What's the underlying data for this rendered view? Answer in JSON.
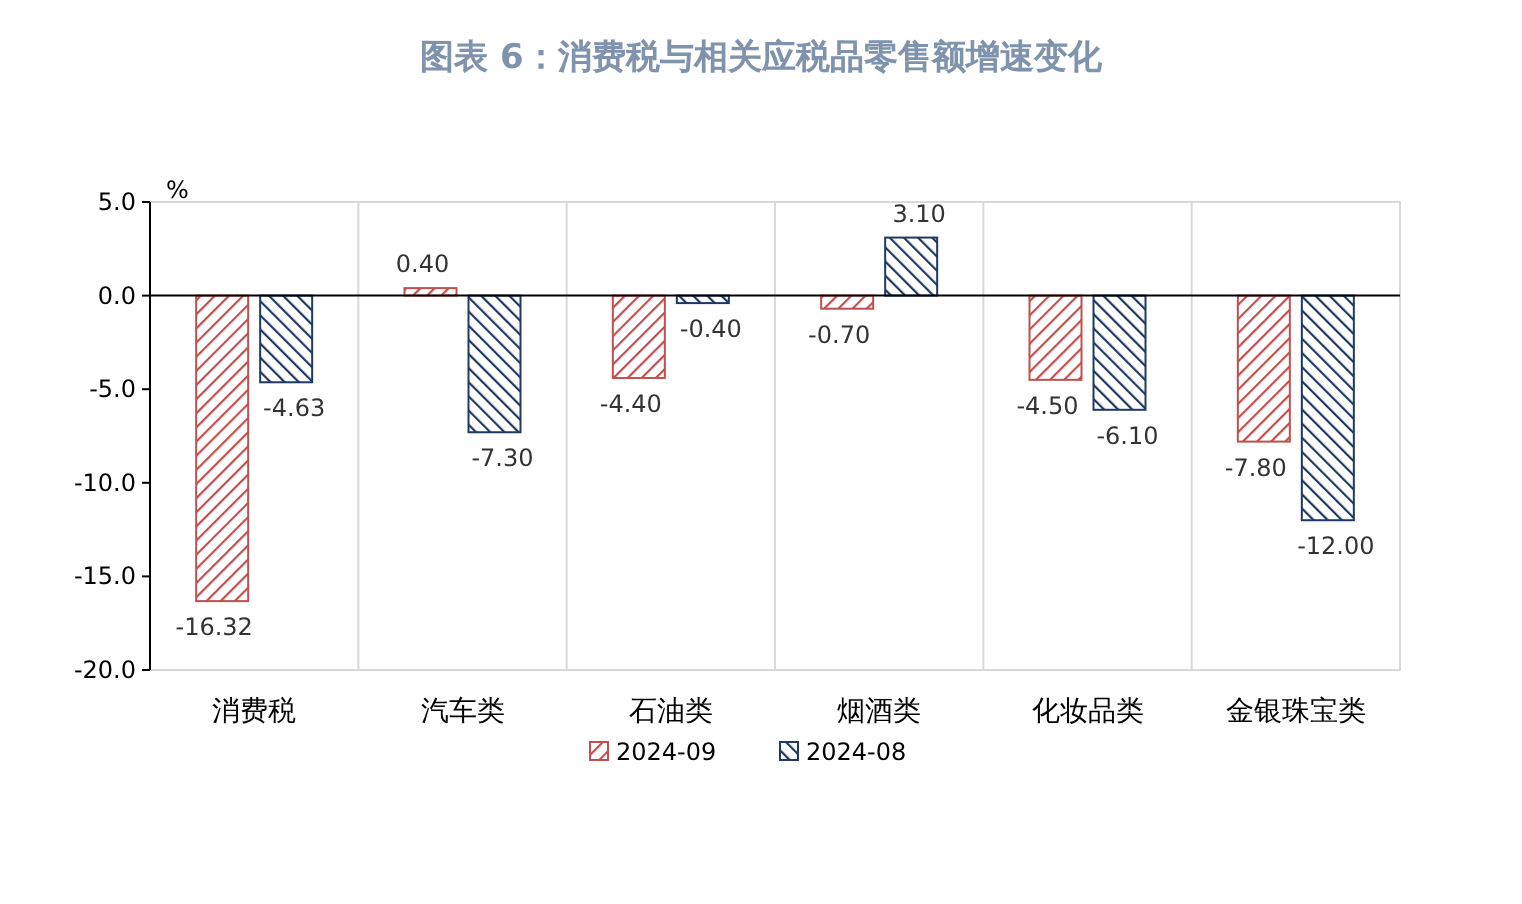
{
  "chart_data": {
    "type": "bar",
    "title": "图表 6：消费税与相关应税品零售额增速变化",
    "ylabel": "%",
    "categories": [
      "消费税",
      "汽车类",
      "石油类",
      "烟酒类",
      "化妆品类",
      "金银珠宝类"
    ],
    "series": [
      {
        "name": "2024-09",
        "color": "#c0504d",
        "values": [
          -16.32,
          0.4,
          -4.4,
          -0.7,
          -4.5,
          -7.8
        ],
        "value_labels": [
          "-16.32",
          "0.40",
          "-4.40",
          "-0.70",
          "-4.50",
          "-7.80"
        ]
      },
      {
        "name": "2024-08",
        "color": "#1f3864",
        "values": [
          -4.63,
          -7.3,
          -0.4,
          3.1,
          -6.1,
          -12.0
        ],
        "value_labels": [
          "-4.63",
          "-7.30",
          "-0.40",
          "3.10",
          "-6.10",
          "-12.00"
        ]
      }
    ],
    "ylim": [
      -20,
      5
    ],
    "yticks": [
      {
        "value": 5,
        "label": "5.0"
      },
      {
        "value": 0,
        "label": "0.0"
      },
      {
        "value": -5,
        "label": "-5.0"
      },
      {
        "value": -10,
        "label": "-10.0"
      },
      {
        "value": -15,
        "label": "-15.0"
      },
      {
        "value": -20,
        "label": "-20.0"
      }
    ],
    "grid": "x",
    "legend": "bottom"
  }
}
